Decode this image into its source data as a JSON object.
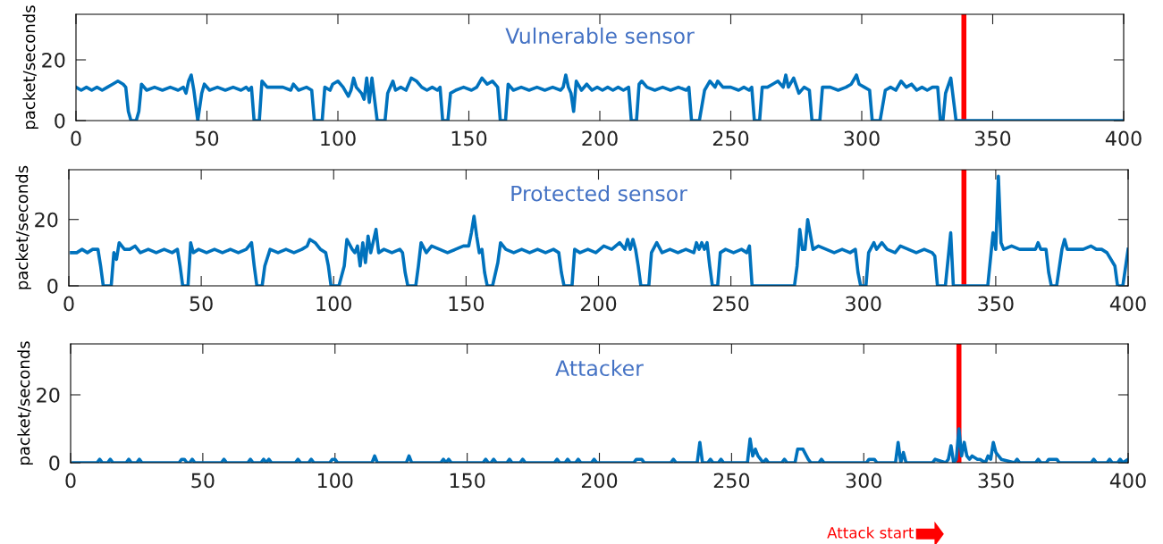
{
  "chart_data": [
    {
      "type": "line",
      "title": "Vulnerable sensor",
      "ylabel": "packet/seconds",
      "xlim": [
        0,
        400
      ],
      "ylim": [
        0,
        35
      ],
      "xticks": [
        0,
        50,
        100,
        150,
        200,
        250,
        300,
        350,
        400
      ],
      "yticks": [
        0,
        20
      ],
      "grid": false,
      "legend": false,
      "marker": "none",
      "line_style": "solid",
      "series": [
        {
          "color": "#0072bd",
          "x": [
            0,
            2,
            4,
            6,
            8,
            10,
            12,
            14,
            16,
            18,
            19,
            20,
            21,
            23,
            24,
            25,
            27,
            30,
            33,
            36,
            39,
            41,
            42,
            43,
            44,
            45,
            46.5,
            48,
            49,
            51,
            54,
            57,
            60,
            63,
            65,
            66,
            67,
            68,
            70,
            71,
            73,
            76,
            79,
            82,
            83,
            85,
            88,
            90,
            91,
            94,
            95,
            97,
            98,
            100,
            102,
            104,
            105,
            106,
            107,
            109,
            110,
            111,
            112,
            113,
            114,
            115,
            118,
            119,
            121,
            122,
            124,
            126,
            128,
            130,
            132,
            134,
            136,
            138,
            139,
            140,
            142,
            143,
            145,
            148,
            151,
            153,
            155,
            157,
            159,
            161,
            162,
            164,
            165,
            167,
            170,
            173,
            176,
            179,
            182,
            185,
            186,
            187,
            188,
            189,
            190,
            191,
            193,
            195,
            197,
            199,
            201,
            203,
            205,
            207,
            209,
            211,
            212,
            214,
            215,
            216,
            218,
            221,
            224,
            227,
            230,
            233,
            234,
            235,
            238,
            240,
            242,
            244,
            245,
            247,
            250,
            253,
            255,
            257,
            258,
            259,
            261,
            262,
            264,
            266,
            268,
            270,
            271,
            272,
            274,
            276,
            278,
            280,
            281,
            284,
            285,
            288,
            291,
            294,
            296,
            298,
            299,
            301,
            303,
            304,
            307,
            309,
            311,
            313,
            315,
            317,
            319,
            321,
            323,
            325,
            327,
            329,
            330,
            331,
            332,
            334,
            336,
            400
          ],
          "values": [
            11,
            10,
            11,
            10,
            11,
            10,
            11,
            12,
            13,
            12,
            11,
            3,
            0,
            0,
            3,
            12,
            10,
            11,
            10,
            11,
            10,
            11,
            9,
            13,
            15,
            10,
            0,
            9,
            12,
            10,
            11,
            10,
            11,
            10,
            11,
            10,
            11,
            0,
            0,
            13,
            11,
            11,
            11,
            10,
            12,
            10,
            11,
            10,
            0,
            0,
            11,
            10,
            12,
            13,
            11,
            8,
            10,
            14,
            11,
            9,
            7,
            14,
            6,
            14,
            7,
            0,
            0,
            9,
            13,
            10,
            11,
            10,
            14,
            13,
            11,
            10,
            11,
            10,
            11,
            0,
            0,
            9,
            10,
            11,
            10,
            11,
            14,
            12,
            13,
            11,
            0,
            0,
            12,
            10,
            11,
            10,
            11,
            10,
            11,
            10,
            11,
            15,
            11,
            9,
            3,
            13,
            10,
            12,
            10,
            11,
            10,
            11,
            10,
            11,
            10,
            11,
            0,
            0,
            12,
            13,
            11,
            10,
            11,
            10,
            11,
            10,
            11,
            0,
            0,
            10,
            13,
            11,
            13,
            11,
            11,
            10,
            11,
            10,
            11,
            0,
            0,
            11,
            11,
            12,
            13,
            11,
            15,
            11,
            14,
            9,
            11,
            10,
            0,
            0,
            11,
            11,
            10,
            11,
            12,
            15,
            12,
            11,
            10,
            0,
            0,
            10,
            11,
            10,
            13,
            11,
            12,
            10,
            11,
            10,
            11,
            11,
            0,
            0,
            9,
            14,
            0,
            0
          ]
        }
      ],
      "ref_lines": [
        {
          "axis": "x",
          "value": 339,
          "color": "#ff0000"
        }
      ]
    },
    {
      "type": "line",
      "title": "Protected sensor",
      "ylabel": "packet/seconds",
      "xlim": [
        0,
        400
      ],
      "ylim": [
        0,
        35
      ],
      "xticks": [
        0,
        50,
        100,
        150,
        200,
        250,
        300,
        350,
        400
      ],
      "yticks": [
        0,
        20
      ],
      "grid": false,
      "legend": false,
      "marker": "none",
      "line_style": "solid",
      "series": [
        {
          "color": "#0072bd",
          "x": [
            1,
            3,
            5,
            7,
            9,
            11,
            12,
            13,
            16,
            17,
            18,
            19,
            21,
            23,
            25,
            27,
            30,
            33,
            36,
            39,
            41,
            42,
            43,
            45,
            46,
            47,
            49,
            52,
            55,
            58,
            61,
            64,
            67,
            69,
            70,
            71,
            73,
            74,
            76,
            79,
            82,
            85,
            88,
            90,
            91,
            93,
            95,
            97,
            98,
            99,
            102,
            104,
            105,
            107,
            108,
            109,
            110,
            111,
            112,
            113,
            114,
            116,
            117,
            119,
            122,
            125,
            126,
            127,
            128,
            131,
            132,
            133,
            135,
            137,
            140,
            143,
            146,
            149,
            151,
            152,
            153,
            154,
            155,
            156,
            157,
            158,
            160,
            162,
            163,
            165,
            168,
            171,
            174,
            177,
            180,
            183,
            185,
            186,
            187,
            190,
            191,
            193,
            196,
            199,
            202,
            205,
            208,
            210,
            211,
            212,
            213,
            214,
            215,
            216,
            219,
            220,
            222,
            224,
            227,
            230,
            233,
            236,
            237,
            238,
            239,
            240,
            241,
            242,
            243,
            245,
            246,
            248,
            251,
            254,
            256,
            257,
            258,
            274,
            275,
            276,
            277,
            278,
            279,
            281,
            283,
            286,
            289,
            292,
            295,
            297,
            298,
            299,
            301,
            302,
            304,
            305,
            307,
            309,
            312,
            314,
            317,
            320,
            323,
            326,
            327,
            328,
            331,
            333,
            334,
            347,
            349,
            350,
            351,
            352,
            353,
            356,
            359,
            362,
            365,
            366,
            367,
            369,
            370,
            371,
            373,
            375,
            376,
            377,
            380,
            383,
            386,
            388,
            390,
            392,
            395,
            396,
            398,
            400
          ],
          "values": [
            10,
            10,
            11,
            10,
            11,
            11,
            6,
            0,
            0,
            10,
            8,
            13,
            11,
            11,
            12,
            10,
            11,
            10,
            11,
            10,
            11,
            6,
            0,
            0,
            13,
            10,
            11,
            10,
            11,
            10,
            11,
            10,
            11,
            13,
            6,
            0,
            0,
            6,
            11,
            10,
            11,
            10,
            11,
            12,
            14,
            13,
            11,
            10,
            6,
            0,
            0,
            6,
            14,
            11,
            10,
            12,
            6,
            13,
            7,
            15,
            10,
            17,
            10,
            11,
            10,
            11,
            10,
            4,
            0,
            0,
            6,
            13,
            10,
            12,
            11,
            10,
            11,
            12,
            12,
            16,
            21,
            15,
            10,
            11,
            4,
            0,
            0,
            7,
            13,
            11,
            10,
            11,
            10,
            11,
            10,
            11,
            10,
            4,
            0,
            0,
            11,
            10,
            11,
            10,
            12,
            11,
            13,
            11,
            14,
            11,
            14,
            11,
            6,
            0,
            0,
            10,
            13,
            10,
            11,
            10,
            11,
            10,
            13,
            11,
            13,
            11,
            13,
            6,
            0,
            0,
            10,
            11,
            10,
            11,
            10,
            12,
            0,
            0,
            6,
            17,
            11,
            11,
            20,
            11,
            12,
            11,
            10,
            11,
            10,
            11,
            4,
            0,
            0,
            10,
            13,
            11,
            13,
            11,
            10,
            12,
            11,
            10,
            11,
            10,
            9,
            0,
            0,
            16,
            0,
            0,
            16,
            11,
            33,
            13,
            11,
            12,
            11,
            11,
            11,
            13,
            11,
            11,
            4,
            0,
            0,
            11,
            14,
            11,
            11,
            11,
            12,
            11,
            11,
            10,
            6,
            0,
            0,
            11
          ]
        }
      ],
      "ref_lines": [
        {
          "axis": "x",
          "value": 338,
          "color": "#ff0000"
        }
      ]
    },
    {
      "type": "line",
      "title": "Attacker",
      "ylabel": "packet/seconds",
      "xlim": [
        0,
        400
      ],
      "ylim": [
        0,
        35
      ],
      "xticks": [
        0,
        50,
        100,
        150,
        200,
        250,
        300,
        350,
        400
      ],
      "yticks": [
        0,
        20
      ],
      "grid": false,
      "legend": false,
      "marker": "none",
      "line_style": "solid",
      "annotations": [
        "Attack start"
      ],
      "series": [
        {
          "color": "#0072bd",
          "x": [
            1,
            10,
            11,
            12,
            14,
            15,
            16,
            21,
            22,
            23,
            25,
            26,
            27,
            41,
            42,
            43,
            44,
            45,
            46,
            47,
            57,
            58,
            59,
            67,
            68,
            69,
            72,
            73,
            74,
            75,
            76,
            85,
            86,
            87,
            90,
            91,
            92,
            98,
            99,
            100,
            101,
            114,
            115,
            116,
            127,
            128,
            129,
            140,
            141,
            142,
            143,
            144,
            156,
            157,
            158,
            159,
            160,
            161,
            165,
            166,
            167,
            170,
            171,
            172,
            183,
            184,
            185,
            187,
            188,
            189,
            191,
            192,
            193,
            197,
            198,
            199,
            213,
            214,
            216,
            217,
            227,
            228,
            229,
            237,
            238,
            239,
            241,
            242,
            243,
            245,
            246,
            247,
            256,
            257,
            258,
            259,
            260,
            262,
            263,
            264,
            269,
            270,
            271,
            274,
            275,
            277,
            279,
            280,
            283,
            284,
            285,
            301,
            302,
            304,
            305,
            312,
            313,
            314,
            315,
            316,
            326,
            327,
            331,
            332,
            333,
            334,
            335,
            336,
            337,
            338,
            339,
            340,
            341,
            343,
            344,
            346,
            347,
            348,
            349,
            350,
            352,
            357,
            358,
            359,
            365,
            366,
            367,
            369,
            370,
            373,
            374,
            386,
            387,
            388,
            392,
            393,
            394,
            396,
            397,
            398,
            400
          ],
          "values": [
            0,
            0,
            1,
            0,
            0,
            1,
            0,
            0,
            1,
            0,
            0,
            1,
            0,
            0,
            1,
            1,
            0,
            0,
            1,
            0,
            0,
            1,
            0,
            0,
            1,
            0,
            0,
            1,
            0,
            1,
            0,
            0,
            1,
            0,
            0,
            1,
            0,
            0,
            1,
            1,
            0,
            0,
            2,
            0,
            0,
            2,
            0,
            0,
            1,
            0,
            1,
            0,
            0,
            1,
            0,
            0,
            1,
            0,
            0,
            1,
            0,
            0,
            1,
            0,
            0,
            1,
            0,
            0,
            1,
            0,
            0,
            1,
            0,
            0,
            1,
            0,
            0,
            1,
            1,
            0,
            0,
            1,
            0,
            0,
            6,
            0,
            0,
            1,
            0,
            0,
            1,
            0,
            0,
            7,
            2,
            4,
            2,
            0,
            1,
            0,
            0,
            1,
            0,
            0,
            4,
            4,
            1,
            0,
            0,
            1,
            0,
            0,
            1,
            1,
            0,
            0,
            6,
            0,
            3,
            0,
            0,
            1,
            0,
            1,
            5,
            0,
            1,
            10,
            2,
            6,
            2,
            1,
            2,
            1,
            1,
            0,
            2,
            1,
            6,
            3,
            1,
            0,
            1,
            0,
            0,
            1,
            0,
            0,
            1,
            1,
            0,
            0,
            1,
            0,
            0,
            1,
            0,
            0,
            1,
            0,
            1
          ]
        }
      ],
      "ref_lines": [
        {
          "axis": "x",
          "value": 336,
          "color": "#ff0000"
        }
      ]
    }
  ]
}
